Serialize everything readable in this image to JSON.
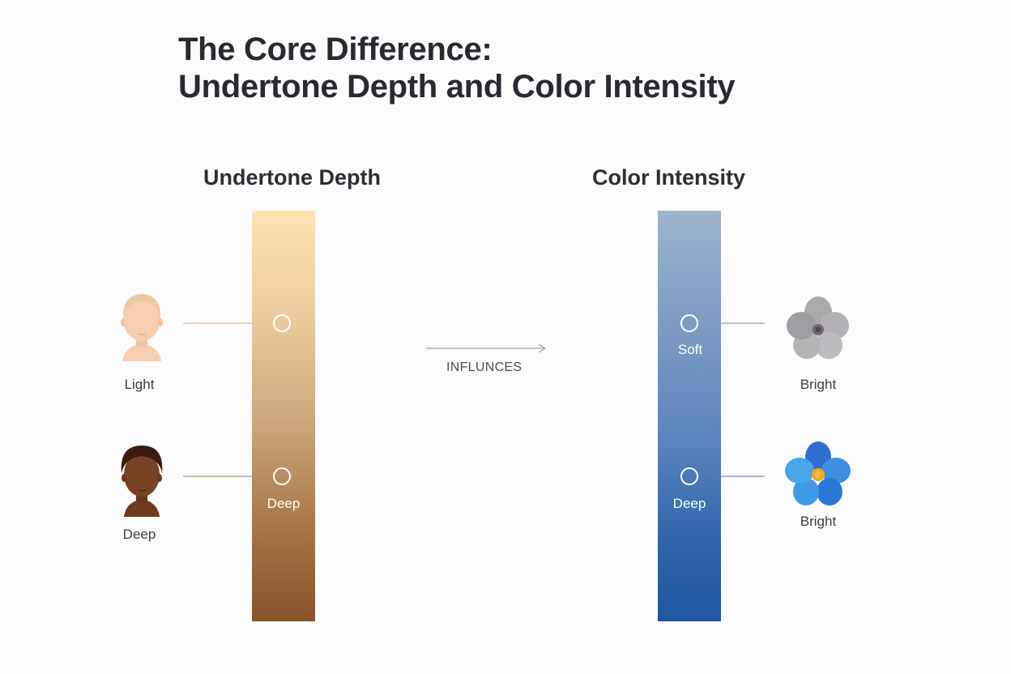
{
  "title": {
    "line1": "The Core Difference:",
    "line2": "Undertone Depth and Color Intensity"
  },
  "undertone": {
    "heading": "Undertone Depth",
    "light_label": "Light",
    "deep_label": "Deep",
    "deep_marker_label": "Deep",
    "gradient_top": "#fde2b1",
    "gradient_bottom": "#8a522a"
  },
  "connector": {
    "label": "INFLUNCES"
  },
  "intensity": {
    "heading": "Color Intensity",
    "soft_marker_label": "Soft",
    "deep_marker_label": "Deep",
    "top_flower_label": "Bright",
    "bottom_flower_label": "Bright",
    "gradient_top": "#9fb4cc",
    "gradient_bottom": "#1e56a3"
  },
  "icons": {
    "light_face": "light-skin-face-icon",
    "deep_face": "deep-skin-face-icon",
    "muted_flower": "muted-gray-flower-icon",
    "bright_flower": "bright-blue-flower-icon"
  }
}
